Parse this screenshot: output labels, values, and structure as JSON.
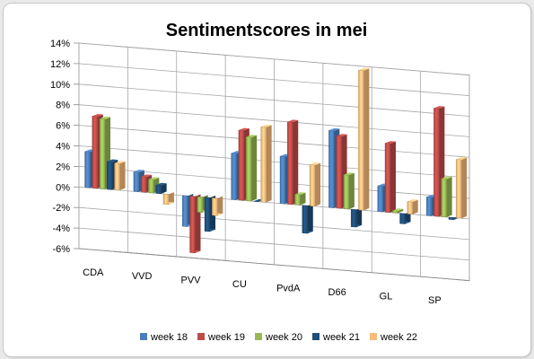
{
  "chart_data": {
    "type": "bar",
    "title": "Sentimentscores in mei",
    "xlabel": "",
    "ylabel": "",
    "categories": [
      "CDA",
      "VVD",
      "PVV",
      "CU",
      "PvdA",
      "D66",
      "GL",
      "SP"
    ],
    "series": [
      {
        "name": "week 18",
        "color": "#4a7ebb",
        "values": [
          3.5,
          1.9,
          -3.0,
          4.5,
          4.6,
          7.5,
          2.5,
          1.8
        ]
      },
      {
        "name": "week 19",
        "color": "#be4b48",
        "values": [
          7.0,
          1.5,
          -5.5,
          6.8,
          8.0,
          7.0,
          6.7,
          10.5
        ]
      },
      {
        "name": "week 20",
        "color": "#98b954",
        "values": [
          6.8,
          1.3,
          -1.5,
          6.2,
          1.0,
          3.3,
          0.2,
          3.7
        ]
      },
      {
        "name": "week 21",
        "color": "#1f4e79",
        "values": [
          2.7,
          0.8,
          -3.3,
          0.0,
          -2.7,
          -1.7,
          -1.0,
          -0.2
        ]
      },
      {
        "name": "week 22",
        "color": "#f9bb7b",
        "values": [
          2.6,
          -1.0,
          -1.7,
          7.3,
          4.0,
          13.6,
          1.2,
          5.7
        ]
      }
    ],
    "ylim": [
      -6,
      14
    ],
    "yticks": [
      "14%",
      "12%",
      "10%",
      "8%",
      "6%",
      "4%",
      "2%",
      "0%",
      "-2%",
      "-4%",
      "-6%"
    ],
    "grid": true,
    "legend": "bottom",
    "style": "3d-clustered-column"
  }
}
